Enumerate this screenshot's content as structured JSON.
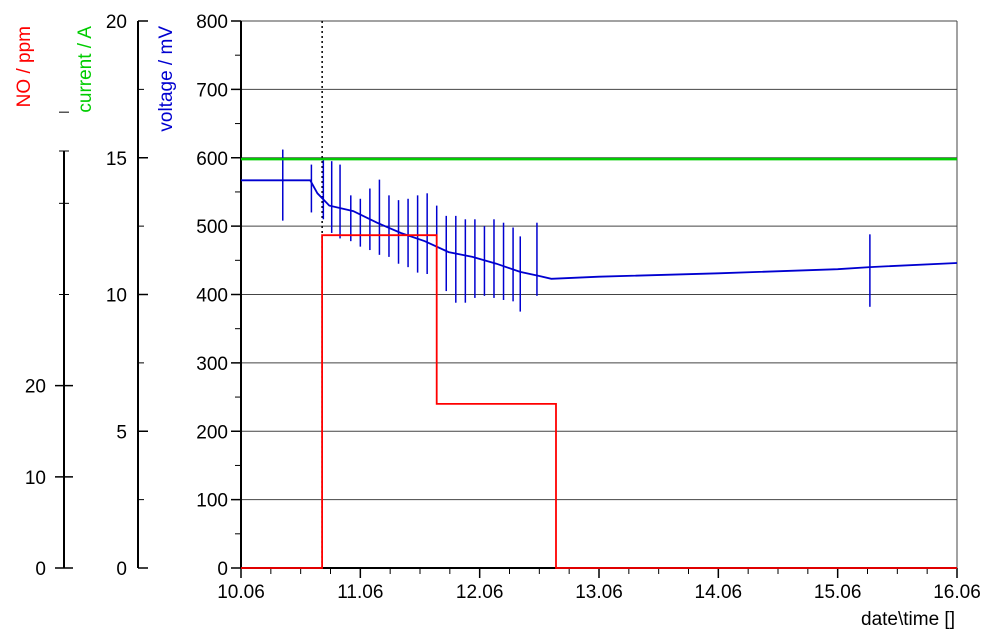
{
  "chart_data": {
    "type": "line",
    "xlabel": "date\\time []",
    "x_ticks": [
      "10.06",
      "11.06",
      "12.06",
      "13.06",
      "14.06",
      "15.06",
      "16.06"
    ],
    "x_range": [
      10.06,
      16.06
    ],
    "grid": true,
    "axes": [
      {
        "id": "voltage",
        "label": "voltage / mV",
        "color": "#0000d0",
        "range": [
          0,
          800
        ],
        "ticks": [
          "0",
          "100",
          "200",
          "300",
          "400",
          "500",
          "600",
          "700",
          "800"
        ]
      },
      {
        "id": "current",
        "label": "current / A",
        "color": "#00cc00",
        "range": [
          0,
          20
        ],
        "ticks": [
          "0",
          "5",
          "10",
          "15",
          "20"
        ]
      },
      {
        "id": "no",
        "label": "NO / ppm",
        "color": "#ff0000",
        "range": [
          0,
          60
        ],
        "ticks": [
          "0",
          "10",
          "20"
        ]
      }
    ],
    "series": [
      {
        "axis": "voltage",
        "color": "#0000d0",
        "points": [
          [
            10.06,
            567
          ],
          [
            10.64,
            567
          ],
          [
            10.7,
            548
          ],
          [
            10.8,
            530
          ],
          [
            11.0,
            522
          ],
          [
            11.2,
            505
          ],
          [
            11.4,
            490
          ],
          [
            11.6,
            478
          ],
          [
            11.8,
            462
          ],
          [
            12.0,
            455
          ],
          [
            12.2,
            445
          ],
          [
            12.4,
            433
          ],
          [
            12.56,
            427
          ],
          [
            12.66,
            423
          ],
          [
            13.06,
            426
          ],
          [
            14.06,
            431
          ],
          [
            15.06,
            437
          ],
          [
            15.33,
            440
          ],
          [
            16.06,
            446
          ]
        ],
        "spikes": [
          [
            10.41,
            508,
            612
          ],
          [
            10.65,
            520,
            590
          ],
          [
            10.75,
            510,
            598
          ],
          [
            10.82,
            490,
            595
          ],
          [
            10.89,
            482,
            590
          ],
          [
            10.98,
            478,
            545
          ],
          [
            11.06,
            470,
            540
          ],
          [
            11.14,
            465,
            555
          ],
          [
            11.22,
            458,
            568
          ],
          [
            11.3,
            455,
            545
          ],
          [
            11.38,
            445,
            538
          ],
          [
            11.46,
            440,
            540
          ],
          [
            11.54,
            432,
            545
          ],
          [
            11.62,
            430,
            548
          ],
          [
            11.7,
            420,
            530
          ],
          [
            11.78,
            405,
            515
          ],
          [
            11.86,
            388,
            515
          ],
          [
            11.94,
            388,
            510
          ],
          [
            12.02,
            395,
            510
          ],
          [
            12.1,
            398,
            500
          ],
          [
            12.18,
            395,
            510
          ],
          [
            12.26,
            392,
            505
          ],
          [
            12.34,
            390,
            498
          ],
          [
            12.4,
            375,
            485
          ],
          [
            12.54,
            398,
            505
          ],
          [
            15.33,
            382,
            488
          ]
        ]
      },
      {
        "axis": "current",
        "color": "#00cc00",
        "points": [
          [
            10.06,
            14.95
          ],
          [
            16.06,
            14.95
          ]
        ]
      },
      {
        "axis": "no",
        "color": "#ff0000",
        "points": [
          [
            10.06,
            0
          ],
          [
            10.74,
            0
          ],
          [
            10.74,
            36.5
          ],
          [
            11.7,
            36.5
          ],
          [
            11.7,
            18
          ],
          [
            12.7,
            18
          ],
          [
            12.7,
            0
          ],
          [
            16.06,
            0
          ]
        ]
      }
    ],
    "marker_x": 10.74
  }
}
